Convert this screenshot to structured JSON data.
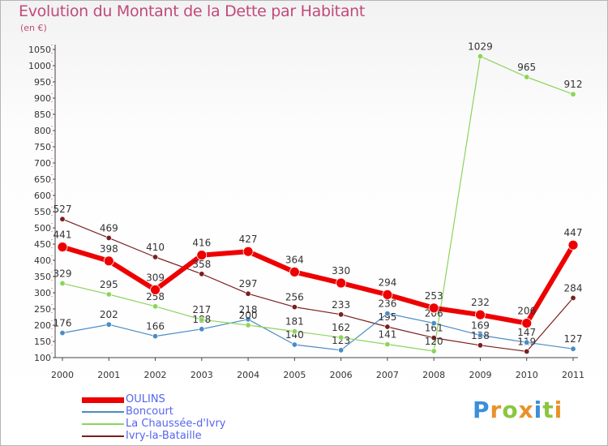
{
  "header": {
    "title": "Evolution du Montant de la Dette par Habitant",
    "unit": "(en €)"
  },
  "logo": {
    "letters": [
      "P",
      "r",
      "o",
      "x",
      "i",
      "t",
      "i"
    ],
    "colors": [
      "#3a8fd8",
      "#e8922a",
      "#8cc63f",
      "#e8922a",
      "#3a8fd8",
      "#8cc63f",
      "#e8922a"
    ]
  },
  "chart_data": {
    "type": "line",
    "title": "Evolution du Montant de la Dette par Habitant",
    "ylabel": "(en €)",
    "xlabel": "",
    "x": [
      "2000",
      "2001",
      "2002",
      "2003",
      "2004",
      "2005",
      "2006",
      "2007",
      "2008",
      "2009",
      "2010",
      "2011"
    ],
    "ylim": [
      100,
      1050
    ],
    "yticks": [
      100,
      150,
      200,
      250,
      300,
      350,
      400,
      450,
      500,
      550,
      600,
      650,
      700,
      750,
      800,
      850,
      900,
      950,
      1000,
      1050
    ],
    "grid": false,
    "legend_position": "bottom-left",
    "series": [
      {
        "name": "Ivry-la-Bataille",
        "color": "#7a1f1f",
        "width": 1.2,
        "values": [
          527,
          469,
          410,
          358,
          297,
          256,
          233,
          195,
          161,
          138,
          119,
          284
        ]
      },
      {
        "name": "Boncourt",
        "color": "#4a8cc4",
        "width": 1.2,
        "values": [
          176,
          202,
          166,
          188,
          218,
          140,
          123,
          236,
          206,
          169,
          147,
          127
        ]
      },
      {
        "name": "La Chaussée-d'Ivry",
        "color": "#8cd45a",
        "width": 1.2,
        "values": [
          329,
          295,
          258,
          217,
          200,
          181,
          162,
          141,
          120,
          1029,
          965,
          912
        ]
      },
      {
        "name": "OULINS",
        "color": "#ee0000",
        "width": 6,
        "values": [
          441,
          398,
          309,
          416,
          427,
          364,
          330,
          294,
          253,
          232,
          206,
          447
        ]
      }
    ],
    "legend_order": [
      "OULINS",
      "Boncourt",
      "La Chaussée-d'Ivry",
      "Ivry-la-Bataille"
    ]
  }
}
